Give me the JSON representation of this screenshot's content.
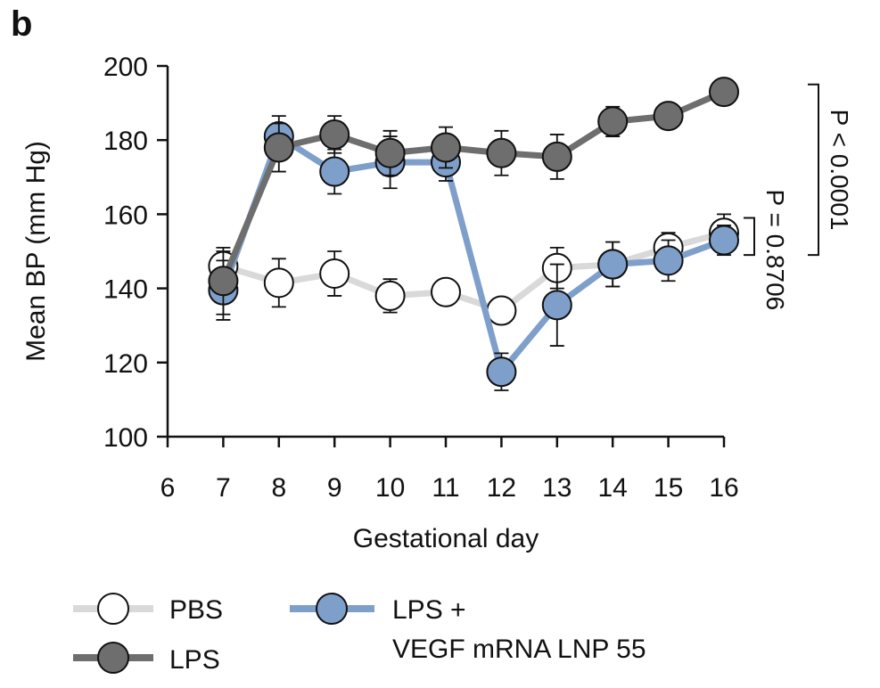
{
  "panel_label": "b",
  "chart_data": {
    "type": "line",
    "xlabel": "Gestational day",
    "ylabel": "Mean BP (mm Hg)",
    "xlim": [
      6,
      16
    ],
    "ylim": [
      100,
      200
    ],
    "xticks": [
      6,
      7,
      8,
      9,
      10,
      11,
      12,
      13,
      14,
      15,
      16
    ],
    "yticks": [
      100,
      120,
      140,
      160,
      180,
      200
    ],
    "grid": false,
    "legend_position": "bottom-left",
    "series": [
      {
        "name": "PBS",
        "line_color": "#d9d9d9",
        "marker_fill": "#ffffff",
        "x": [
          7,
          8,
          9,
          10,
          11,
          12,
          13,
          14,
          15,
          16
        ],
        "y": [
          146,
          141.5,
          144,
          138,
          139,
          134,
          145.5,
          146.5,
          151,
          155
        ],
        "err": [
          4,
          6.5,
          6,
          4.5,
          0,
          0,
          5.5,
          6,
          4,
          5
        ]
      },
      {
        "name": "LPS + VEGF mRNA LNP 55",
        "line_color": "#7f9fcb",
        "marker_fill": "#7f9fcb",
        "x": [
          7,
          8,
          9,
          10,
          11,
          12,
          13,
          14,
          15,
          16
        ],
        "y": [
          139.5,
          181,
          171.5,
          174,
          174,
          117.5,
          135.5,
          146.5,
          147.5,
          153
        ],
        "err": [
          8,
          5.5,
          6,
          7,
          5,
          5,
          11,
          6,
          5.5,
          4
        ]
      },
      {
        "name": "LPS",
        "line_color": "#6e6e6e",
        "marker_fill": "#6e6e6e",
        "x": [
          7,
          8,
          9,
          10,
          11,
          12,
          13,
          14,
          15,
          16
        ],
        "y": [
          142,
          178,
          181.5,
          176.5,
          178,
          176.5,
          175.5,
          185,
          186.5,
          193
        ],
        "err": [
          9,
          6.5,
          5,
          6,
          5.5,
          6,
          6,
          4,
          0,
          0
        ]
      }
    ],
    "annotations": [
      {
        "text": "P < 0.0001",
        "from_y": 195,
        "to_y": 149
      },
      {
        "text": "P = 0.8706",
        "from_y": 159,
        "to_y": 149
      }
    ]
  },
  "legend": {
    "pbs": "PBS",
    "lps": "LPS",
    "vegf_line1": "LPS +",
    "vegf_line2": "VEGF mRNA LNP 55"
  }
}
